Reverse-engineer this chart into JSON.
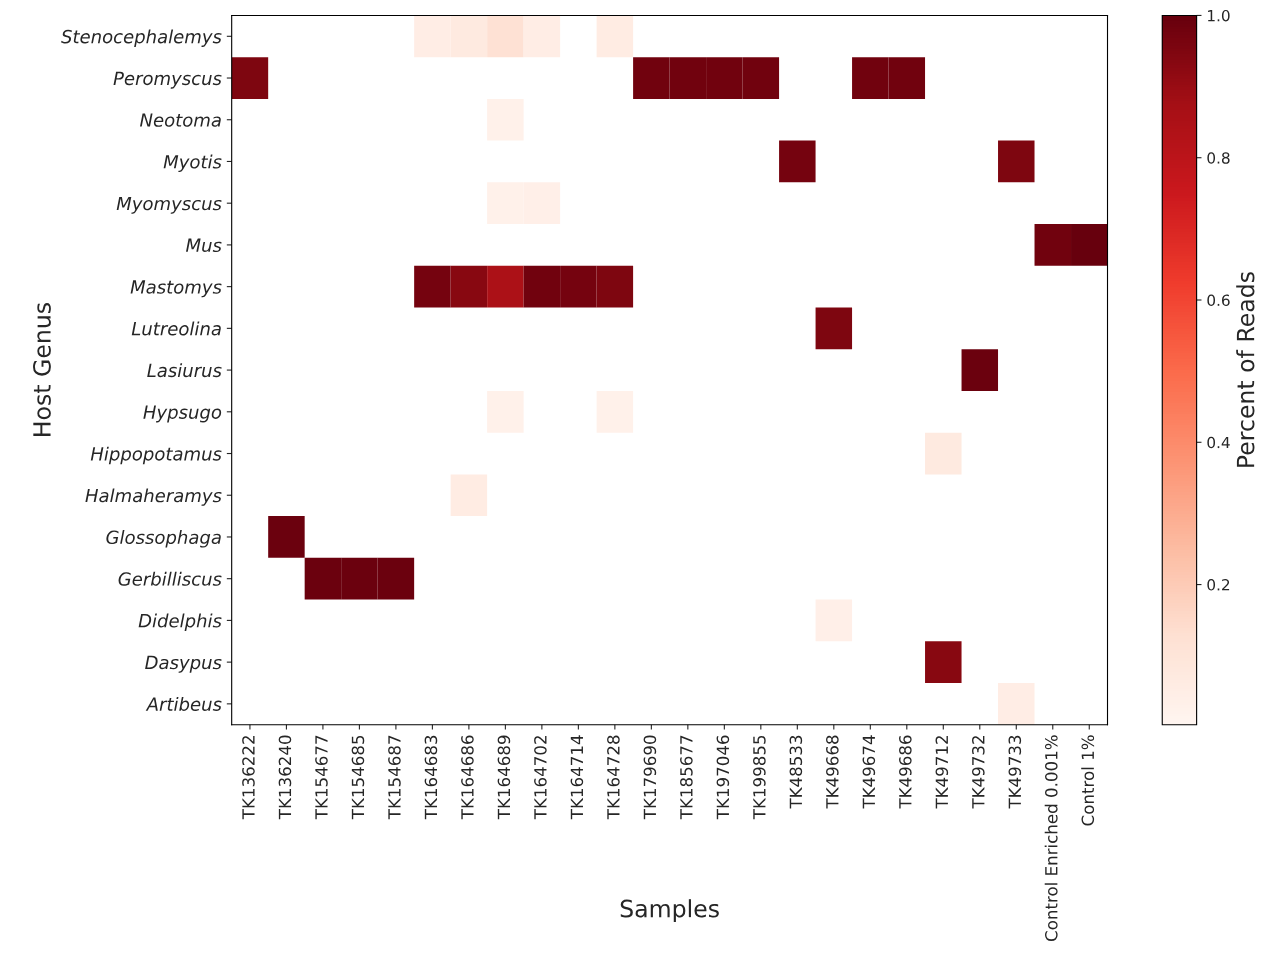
{
  "chart_data": {
    "type": "heatmap",
    "xlabel": "Samples",
    "ylabel": "Host Genus",
    "clabel": "Percent of Reads",
    "categories": [
      "TK136222",
      "TK136240",
      "TK154677",
      "TK154685",
      "TK154687",
      "TK164683",
      "TK164686",
      "TK164689",
      "TK164702",
      "TK164714",
      "TK164728",
      "TK179690",
      "TK185677",
      "TK197046",
      "TK199855",
      "TK48533",
      "TK49668",
      "TK49674",
      "TK49686",
      "TK49712",
      "TK49732",
      "TK49733",
      "Control Enriched 0.001%",
      "Control 1%"
    ],
    "y_categories": [
      "Stenocephalemys",
      "Peromyscus",
      "Neotoma",
      "Myotis",
      "Myomyscus",
      "Mus",
      "Mastomys",
      "Lutreolina",
      "Lasiurus",
      "Hypsugo",
      "Hippopotamus",
      "Halmaheramys",
      "Glossophaga",
      "Gerbilliscus",
      "Didelphis",
      "Dasypus",
      "Artibeus"
    ],
    "cells": [
      [
        null,
        null,
        null,
        null,
        null,
        0.05,
        0.07,
        0.12,
        0.05,
        null,
        0.06,
        null,
        null,
        null,
        null,
        null,
        null,
        null,
        null,
        null,
        null,
        null,
        null,
        null
      ],
      [
        0.95,
        null,
        null,
        null,
        null,
        null,
        null,
        null,
        null,
        null,
        null,
        0.98,
        0.98,
        0.98,
        0.98,
        null,
        null,
        0.98,
        0.98,
        null,
        null,
        null,
        null,
        null
      ],
      [
        null,
        null,
        null,
        null,
        null,
        null,
        null,
        0.03,
        null,
        null,
        null,
        null,
        null,
        null,
        null,
        null,
        null,
        null,
        null,
        null,
        null,
        null,
        null,
        null
      ],
      [
        null,
        null,
        null,
        null,
        null,
        null,
        null,
        null,
        null,
        null,
        null,
        null,
        null,
        null,
        null,
        0.97,
        null,
        null,
        null,
        null,
        null,
        0.95,
        null,
        null
      ],
      [
        null,
        null,
        null,
        null,
        null,
        null,
        null,
        0.03,
        0.04,
        null,
        null,
        null,
        null,
        null,
        null,
        null,
        null,
        null,
        null,
        null,
        null,
        null,
        null,
        null
      ],
      [
        null,
        null,
        null,
        null,
        null,
        null,
        null,
        null,
        null,
        null,
        null,
        null,
        null,
        null,
        null,
        null,
        null,
        null,
        null,
        null,
        null,
        null,
        0.98,
        1.0
      ],
      [
        null,
        null,
        null,
        null,
        null,
        0.97,
        0.93,
        0.85,
        0.98,
        0.97,
        0.95,
        null,
        null,
        null,
        null,
        null,
        null,
        null,
        null,
        null,
        null,
        null,
        null,
        null
      ],
      [
        null,
        null,
        null,
        null,
        null,
        null,
        null,
        null,
        null,
        null,
        null,
        null,
        null,
        null,
        null,
        null,
        0.95,
        null,
        null,
        null,
        null,
        null,
        null,
        null
      ],
      [
        null,
        null,
        null,
        null,
        null,
        null,
        null,
        null,
        null,
        null,
        null,
        null,
        null,
        null,
        null,
        null,
        null,
        null,
        null,
        null,
        0.99,
        null,
        null,
        null
      ],
      [
        null,
        null,
        null,
        null,
        null,
        null,
        null,
        0.03,
        null,
        null,
        0.03,
        null,
        null,
        null,
        null,
        null,
        null,
        null,
        null,
        null,
        null,
        null,
        null,
        null
      ],
      [
        null,
        null,
        null,
        null,
        null,
        null,
        null,
        null,
        null,
        null,
        null,
        null,
        null,
        null,
        null,
        null,
        null,
        null,
        null,
        0.07,
        null,
        null,
        null,
        null
      ],
      [
        null,
        null,
        null,
        null,
        null,
        null,
        0.06,
        null,
        null,
        null,
        null,
        null,
        null,
        null,
        null,
        null,
        null,
        null,
        null,
        null,
        null,
        null,
        null,
        null
      ],
      [
        null,
        0.99,
        null,
        null,
        null,
        null,
        null,
        null,
        null,
        null,
        null,
        null,
        null,
        null,
        null,
        null,
        null,
        null,
        null,
        null,
        null,
        null,
        null,
        null
      ],
      [
        null,
        null,
        0.99,
        0.99,
        0.99,
        null,
        null,
        null,
        null,
        null,
        null,
        null,
        null,
        null,
        null,
        null,
        null,
        null,
        null,
        null,
        null,
        null,
        null,
        null
      ],
      [
        null,
        null,
        null,
        null,
        null,
        null,
        null,
        null,
        null,
        null,
        null,
        null,
        null,
        null,
        null,
        null,
        0.04,
        null,
        null,
        null,
        null,
        null,
        null,
        null
      ],
      [
        null,
        null,
        null,
        null,
        null,
        null,
        null,
        null,
        null,
        null,
        null,
        null,
        null,
        null,
        null,
        null,
        null,
        null,
        null,
        0.93,
        null,
        null,
        null,
        null
      ],
      [
        null,
        null,
        null,
        null,
        null,
        null,
        null,
        null,
        null,
        null,
        null,
        null,
        null,
        null,
        null,
        null,
        null,
        null,
        null,
        null,
        null,
        0.05,
        null,
        null
      ]
    ],
    "clim": [
      0.003,
      1.0
    ],
    "cticks": [
      0.2,
      0.4,
      0.6,
      0.8,
      {
        "value": 1,
        "label": "1.0"
      }
    ]
  }
}
